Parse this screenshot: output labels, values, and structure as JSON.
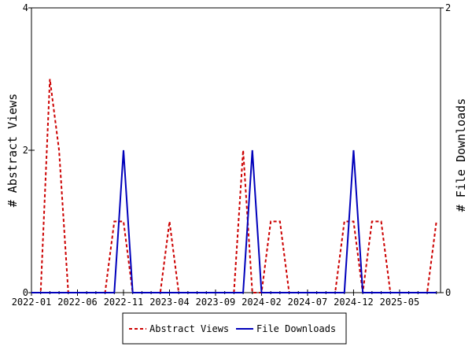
{
  "chart_data": {
    "type": "line",
    "title": "",
    "xlabel": "",
    "ylabel": "# Abstract Views",
    "y2label": "# File Downloads",
    "ylim": [
      0,
      4
    ],
    "y2lim": [
      0,
      2
    ],
    "yticks": [
      "0",
      "2",
      "4"
    ],
    "y2ticks": [
      "0",
      "2"
    ],
    "xtick_labels": [
      "2022-01",
      "2022-06",
      "2022-11",
      "2023-04",
      "2023-09",
      "2024-02",
      "2024-07",
      "2024-12",
      "2025-05"
    ],
    "start_month": "2022-01",
    "month_count": 45,
    "legend_placement": "bottom-center",
    "series": [
      {
        "name": "Abstract Views",
        "axis": "left",
        "color": "#cc0000",
        "style": "dashed",
        "values": [
          0,
          0,
          3,
          2,
          0,
          0,
          0,
          0,
          0,
          1,
          1,
          0,
          0,
          0,
          0,
          1,
          0,
          0,
          0,
          0,
          0,
          0,
          0,
          2,
          0,
          0,
          1,
          1,
          0,
          0,
          0,
          0,
          0,
          0,
          1,
          1,
          0,
          1,
          1,
          0,
          0,
          0,
          0,
          0,
          1
        ]
      },
      {
        "name": "File Downloads",
        "axis": "right",
        "color": "#0000bb",
        "style": "solid",
        "values": [
          0,
          0,
          0,
          0,
          0,
          0,
          0,
          0,
          0,
          0,
          1,
          0,
          0,
          0,
          0,
          0,
          0,
          0,
          0,
          0,
          0,
          0,
          0,
          0,
          1,
          0,
          0,
          0,
          0,
          0,
          0,
          0,
          0,
          0,
          0,
          1,
          0,
          0,
          0,
          0,
          0,
          0,
          0,
          0,
          0
        ]
      }
    ]
  }
}
